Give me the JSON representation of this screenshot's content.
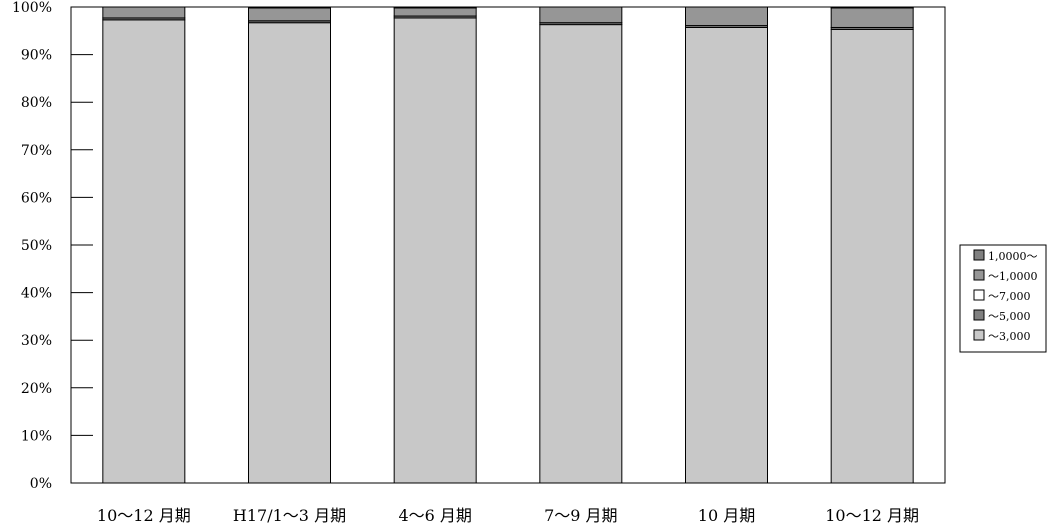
{
  "chart_data": {
    "type": "bar",
    "stacked": true,
    "percent": true,
    "categories": [
      "10～12 月期",
      "H17/1～3 月期",
      "4～6 月期",
      "7～9 月期",
      "10 月期",
      "10～12 月期"
    ],
    "series": [
      {
        "name": "～3,000",
        "color": "#c8c8c8",
        "values": [
          97.3,
          96.7,
          97.7,
          96.3,
          95.7,
          95.3
        ]
      },
      {
        "name": "～5,000",
        "color": "#808080",
        "values": [
          0.4,
          0.4,
          0.4,
          0.4,
          0.4,
          0.4
        ]
      },
      {
        "name": "～7,000",
        "color": "#ffffff",
        "values": [
          0,
          0,
          0,
          0,
          0,
          0
        ]
      },
      {
        "name": "～1,0000",
        "color": "#969696",
        "values": [
          2.3,
          2.7,
          1.7,
          3.3,
          3.9,
          4.1
        ]
      },
      {
        "name": "1,0000～",
        "color": "#808080",
        "values": [
          0,
          0.2,
          0.2,
          0,
          0,
          0.2
        ]
      }
    ],
    "yticks": [
      "0%",
      "10%",
      "20%",
      "30%",
      "40%",
      "50%",
      "60%",
      "70%",
      "80%",
      "90%",
      "100%"
    ],
    "ylim": [
      0,
      100
    ],
    "legend_position": "right",
    "grid": false
  }
}
